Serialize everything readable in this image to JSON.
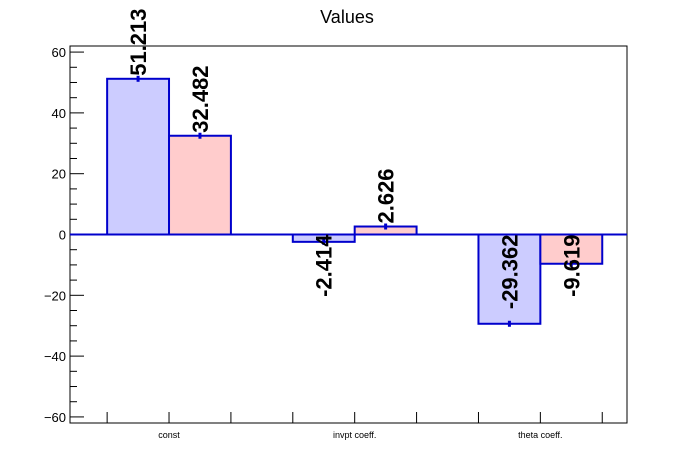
{
  "chart_data": {
    "type": "bar",
    "title": "Values",
    "xlabel": "",
    "ylabel": "",
    "categories": [
      "const",
      "invpt coeff.",
      "theta coeff."
    ],
    "ylim": [
      -62,
      62
    ],
    "yticks": [
      -60,
      -40,
      -20,
      0,
      20,
      40,
      60
    ],
    "ytick_labels": [
      "−60",
      "−40",
      "−20",
      "0",
      "20",
      "40",
      "60"
    ],
    "grid": false,
    "series": [
      {
        "values": [
          51.213,
          -2.414,
          -29.362
        ],
        "labels": [
          "51.213",
          "-2.414",
          "-29.362"
        ],
        "fill": "#ccccff",
        "stroke": "#0000cc"
      },
      {
        "values": [
          32.482,
          2.626,
          -9.619
        ],
        "labels": [
          "32.482",
          "2.626",
          "-9.619"
        ],
        "fill": "#ffcccc",
        "stroke": "#0000cc"
      }
    ]
  }
}
